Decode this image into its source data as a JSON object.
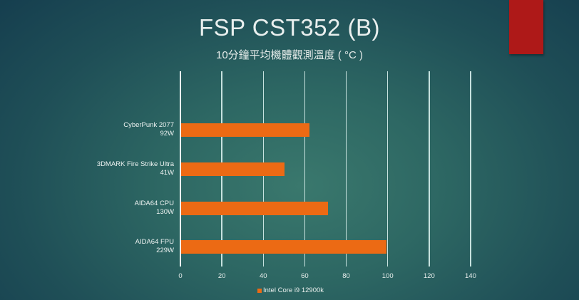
{
  "slide": {
    "title": "FSP CST352 (B)",
    "subtitle": "10分鐘平均機體觀測溫度 ( °C )",
    "accent_tab_color": "#ae1918"
  },
  "chart_data": {
    "type": "bar",
    "orientation": "horizontal",
    "title": "10分鐘平均機體觀測溫度 ( °C )",
    "xlabel": "",
    "ylabel": "",
    "categories": [
      "CyberPunk 2077 92W",
      "3DMARK Fire Strike Ultra 41W",
      "AIDA64 CPU 130W",
      "AIDA64 FPU 229W"
    ],
    "category_lines": [
      [
        "CyberPunk 2077",
        "92W"
      ],
      [
        "3DMARK Fire Strike Ultra",
        "41W"
      ],
      [
        "AIDA64 CPU",
        "130W"
      ],
      [
        "AIDA64 FPU",
        "229W"
      ]
    ],
    "series": [
      {
        "name": "Intel Core i9 12900k",
        "color": "#ec6a14",
        "values": [
          62,
          50,
          71,
          99
        ]
      }
    ],
    "xlim": [
      0,
      140
    ],
    "xticks": [
      "0",
      "20",
      "40",
      "60",
      "80",
      "100",
      "120",
      "140"
    ],
    "grid": true,
    "legend_position": "bottom"
  }
}
